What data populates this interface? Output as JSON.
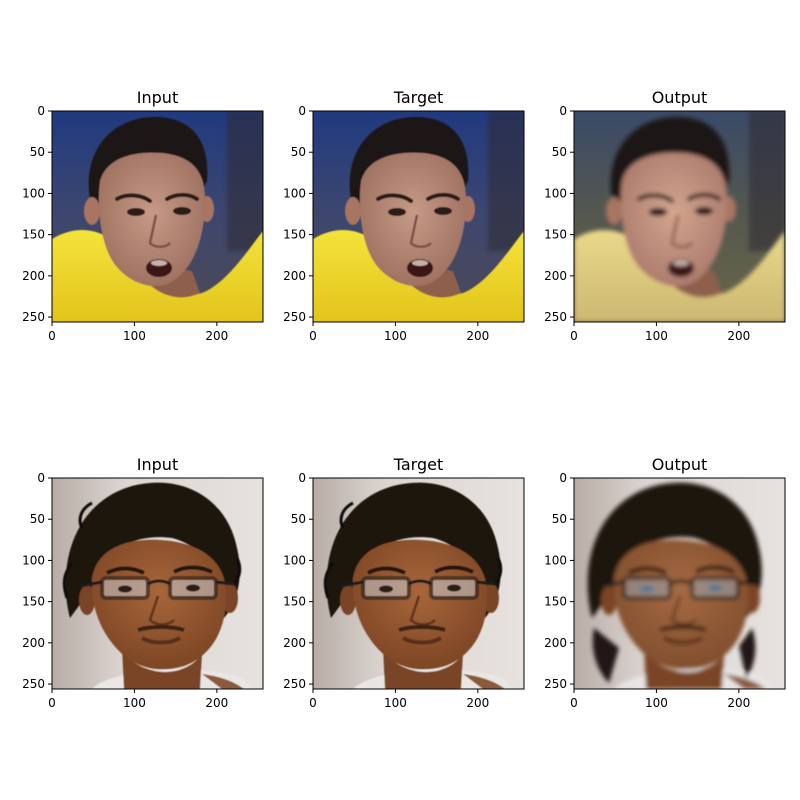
{
  "figure": {
    "background": "#ffffff",
    "panels": [
      {
        "title": "Input",
        "subject": "young man in yellow shirt, open mouth, blue-gray background",
        "style": "sharp"
      },
      {
        "title": "Target",
        "subject": "young man in yellow shirt, open mouth, blue-gray background",
        "style": "sharp"
      },
      {
        "title": "Output",
        "subject": "young man in yellow shirt, open mouth, blue-gray background",
        "style": "smoothed"
      },
      {
        "title": "Input",
        "subject": "man with curly hair and glasses, light gray background",
        "style": "sharp"
      },
      {
        "title": "Target",
        "subject": "man with curly hair and glasses, light gray background",
        "style": "sharp"
      },
      {
        "title": "Output",
        "subject": "man with curly hair and glasses, light gray background",
        "style": "smoothed"
      }
    ],
    "axes": {
      "xticks": [
        0,
        100,
        200
      ],
      "yticks": [
        0,
        50,
        100,
        150,
        200,
        250
      ],
      "xlim": [
        0,
        256
      ],
      "ylim": [
        256,
        0
      ]
    }
  },
  "colors": {
    "row1_bg_top": "#2a3f7a",
    "row1_bg_bottom": "#4a4a5a",
    "row1_shirt": "#f2dc25",
    "row1_skin": "#b98972",
    "row1_hair": "#1a1512",
    "row1_mouth": "#3a1512",
    "row2_bg": "#d9d4d0",
    "row2_skin": "#9c5c32",
    "row2_hair": "#1c1410",
    "row2_glasses": "#1a1a1a",
    "row2_shirt": "#e9e6e3"
  }
}
